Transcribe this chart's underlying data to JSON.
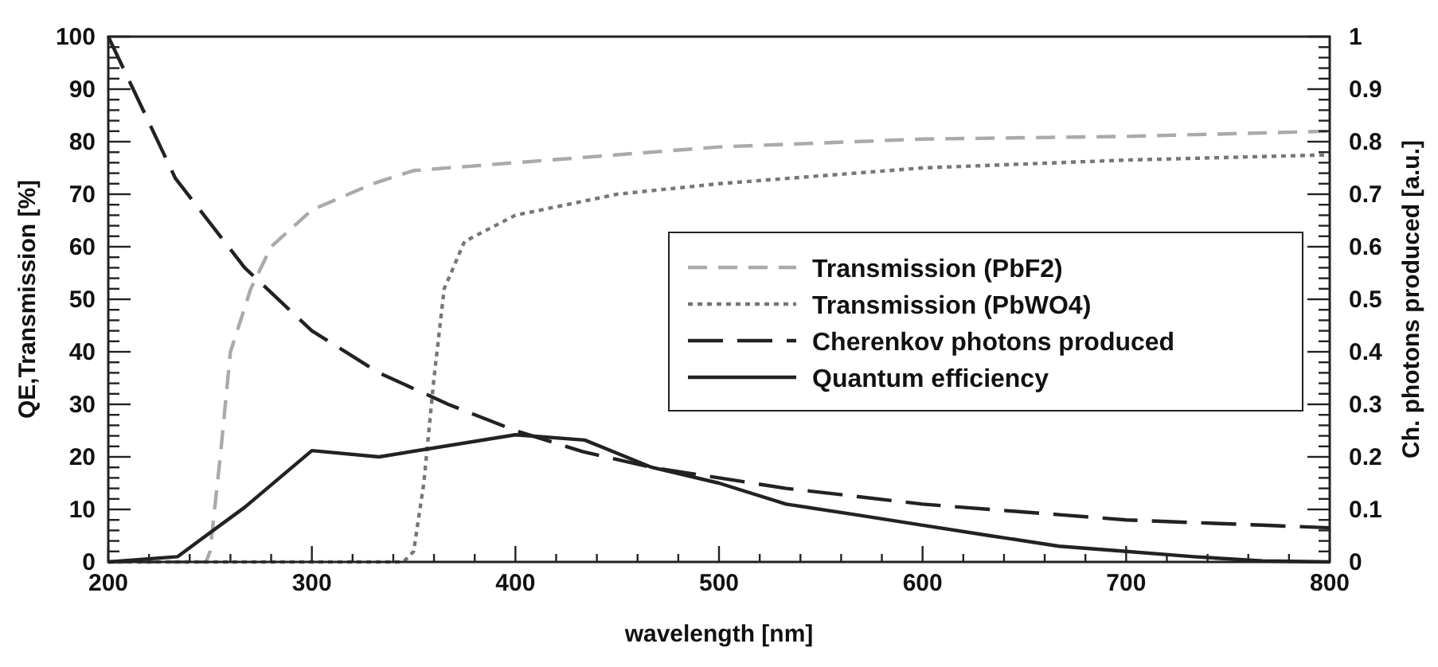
{
  "chart_data": {
    "type": "line",
    "xlabel": "wavelength [nm]",
    "ylabel": "QE,Transmission [%]",
    "y2label": "Ch. photons produced [a.u.]",
    "xlim": [
      200,
      800
    ],
    "ylim": [
      0,
      100
    ],
    "y2lim": [
      0,
      1
    ],
    "xticks": [
      200,
      {
        "value": 220,
        "label": null
      },
      {
        "value": 240,
        "label": null
      },
      {
        "value": 260,
        "label": null
      },
      {
        "value": 280,
        "label": null
      },
      300,
      {
        "value": 320,
        "label": null
      },
      {
        "value": 340,
        "label": null
      },
      {
        "value": 360,
        "label": null
      },
      {
        "value": 380,
        "label": null
      },
      400,
      {
        "value": 420,
        "label": null
      },
      {
        "value": 440,
        "label": null
      },
      {
        "value": 460,
        "label": null
      },
      {
        "value": 480,
        "label": null
      },
      500,
      {
        "value": 520,
        "label": null
      },
      {
        "value": 540,
        "label": null
      },
      {
        "value": 560,
        "label": null
      },
      {
        "value": 580,
        "label": null
      },
      600,
      {
        "value": 620,
        "label": null
      },
      {
        "value": 640,
        "label": null
      },
      {
        "value": 660,
        "label": null
      },
      {
        "value": 680,
        "label": null
      },
      700,
      {
        "value": 720,
        "label": null
      },
      {
        "value": 740,
        "label": null
      },
      {
        "value": 760,
        "label": null
      },
      {
        "value": 780,
        "label": null
      },
      800
    ],
    "yticks": [
      0,
      {
        "value": 2,
        "label": null
      },
      {
        "value": 4,
        "label": null
      },
      {
        "value": 6,
        "label": null
      },
      {
        "value": 8,
        "label": null
      },
      10,
      {
        "value": 12,
        "label": null
      },
      {
        "value": 14,
        "label": null
      },
      {
        "value": 16,
        "label": null
      },
      {
        "value": 18,
        "label": null
      },
      20,
      {
        "value": 22,
        "label": null
      },
      {
        "value": 24,
        "label": null
      },
      {
        "value": 26,
        "label": null
      },
      {
        "value": 28,
        "label": null
      },
      30,
      {
        "value": 32,
        "label": null
      },
      {
        "value": 34,
        "label": null
      },
      {
        "value": 36,
        "label": null
      },
      {
        "value": 38,
        "label": null
      },
      40,
      {
        "value": 42,
        "label": null
      },
      {
        "value": 44,
        "label": null
      },
      {
        "value": 46,
        "label": null
      },
      {
        "value": 48,
        "label": null
      },
      50,
      {
        "value": 52,
        "label": null
      },
      {
        "value": 54,
        "label": null
      },
      {
        "value": 56,
        "label": null
      },
      {
        "value": 58,
        "label": null
      },
      60,
      {
        "value": 62,
        "label": null
      },
      {
        "value": 64,
        "label": null
      },
      {
        "value": 66,
        "label": null
      },
      {
        "value": 68,
        "label": null
      },
      70,
      {
        "value": 72,
        "label": null
      },
      {
        "value": 74,
        "label": null
      },
      {
        "value": 76,
        "label": null
      },
      {
        "value": 78,
        "label": null
      },
      80,
      {
        "value": 82,
        "label": null
      },
      {
        "value": 84,
        "label": null
      },
      {
        "value": 86,
        "label": null
      },
      {
        "value": 88,
        "label": null
      },
      90,
      {
        "value": 92,
        "label": null
      },
      {
        "value": 94,
        "label": null
      },
      {
        "value": 96,
        "label": null
      },
      {
        "value": 98,
        "label": null
      },
      100
    ],
    "y2ticks": [
      0,
      {
        "value": 0.02,
        "label": null
      },
      {
        "value": 0.04,
        "label": null
      },
      {
        "value": 0.06,
        "label": null
      },
      {
        "value": 0.08,
        "label": null
      },
      0.1,
      {
        "value": 0.12,
        "label": null
      },
      {
        "value": 0.14,
        "label": null
      },
      {
        "value": 0.16,
        "label": null
      },
      {
        "value": 0.18,
        "label": null
      },
      0.2,
      {
        "value": 0.22,
        "label": null
      },
      {
        "value": 0.24,
        "label": null
      },
      {
        "value": 0.26,
        "label": null
      },
      {
        "value": 0.28,
        "label": null
      },
      0.3,
      {
        "value": 0.32,
        "label": null
      },
      {
        "value": 0.34,
        "label": null
      },
      {
        "value": 0.36,
        "label": null
      },
      {
        "value": 0.38,
        "label": null
      },
      0.4,
      {
        "value": 0.42,
        "label": null
      },
      {
        "value": 0.44,
        "label": null
      },
      {
        "value": 0.46,
        "label": null
      },
      {
        "value": 0.48,
        "label": null
      },
      0.5,
      {
        "value": 0.52,
        "label": null
      },
      {
        "value": 0.54,
        "label": null
      },
      {
        "value": 0.56,
        "label": null
      },
      {
        "value": 0.58,
        "label": null
      },
      0.6,
      {
        "value": 0.62,
        "label": null
      },
      {
        "value": 0.64,
        "label": null
      },
      {
        "value": 0.66,
        "label": null
      },
      {
        "value": 0.68,
        "label": null
      },
      0.7,
      {
        "value": 0.72,
        "label": null
      },
      {
        "value": 0.74,
        "label": null
      },
      {
        "value": 0.76,
        "label": null
      },
      {
        "value": 0.78,
        "label": null
      },
      0.8,
      {
        "value": 0.82,
        "label": null
      },
      {
        "value": 0.84,
        "label": null
      },
      {
        "value": 0.86,
        "label": null
      },
      {
        "value": 0.88,
        "label": null
      },
      0.9,
      {
        "value": 0.92,
        "label": null
      },
      {
        "value": 0.94,
        "label": null
      },
      {
        "value": 0.96,
        "label": null
      },
      {
        "value": 0.98,
        "label": null
      },
      1
    ],
    "grid": false,
    "legend": "right",
    "marker": "none",
    "series": [
      {
        "name": "Transmission (PbF2)",
        "color": "#aaaaaa",
        "line_style": "dashed",
        "x": [
          200,
          248,
          250,
          255,
          260,
          270,
          280,
          300,
          330,
          350,
          400,
          450,
          500,
          600,
          700,
          800
        ],
        "values": [
          0,
          0,
          2,
          20,
          40,
          52,
          60,
          67,
          72,
          74.5,
          76,
          77.5,
          79,
          80.5,
          81,
          82
        ]
      },
      {
        "name": "Transmission (PbWO4)",
        "color": "#777777",
        "line_style": "dotted",
        "x": [
          200,
          345,
          350,
          355,
          360,
          365,
          375,
          390,
          400,
          450,
          500,
          600,
          700,
          800
        ],
        "values": [
          0,
          0,
          2,
          15,
          35,
          52,
          61,
          64,
          66,
          70,
          72,
          75,
          76.5,
          77.5
        ]
      },
      {
        "name": "Cherenkov photons produced",
        "color": "#222222",
        "line_style": "dashed",
        "axis": "y2",
        "x": [
          200,
          233,
          267,
          300,
          333,
          367,
          400,
          433,
          467,
          500,
          533,
          567,
          600,
          633,
          667,
          700,
          733,
          767,
          800
        ],
        "values": [
          1.0,
          0.73,
          0.56,
          0.44,
          0.36,
          0.3,
          0.25,
          0.21,
          0.18,
          0.16,
          0.14,
          0.125,
          0.11,
          0.1,
          0.09,
          0.08,
          0.075,
          0.07,
          0.065
        ]
      },
      {
        "name": "Quantum efficiency",
        "color": "#222222",
        "line_style": "solid",
        "x": [
          200,
          234,
          267,
          300,
          333,
          400,
          434,
          467,
          500,
          533,
          567,
          600,
          633,
          667,
          700,
          733,
          767,
          800
        ],
        "values": [
          0,
          1,
          10.4,
          21.2,
          20,
          24.2,
          23.2,
          18,
          15,
          11,
          9,
          7,
          5,
          3,
          2,
          1,
          0.2,
          0
        ]
      }
    ]
  }
}
